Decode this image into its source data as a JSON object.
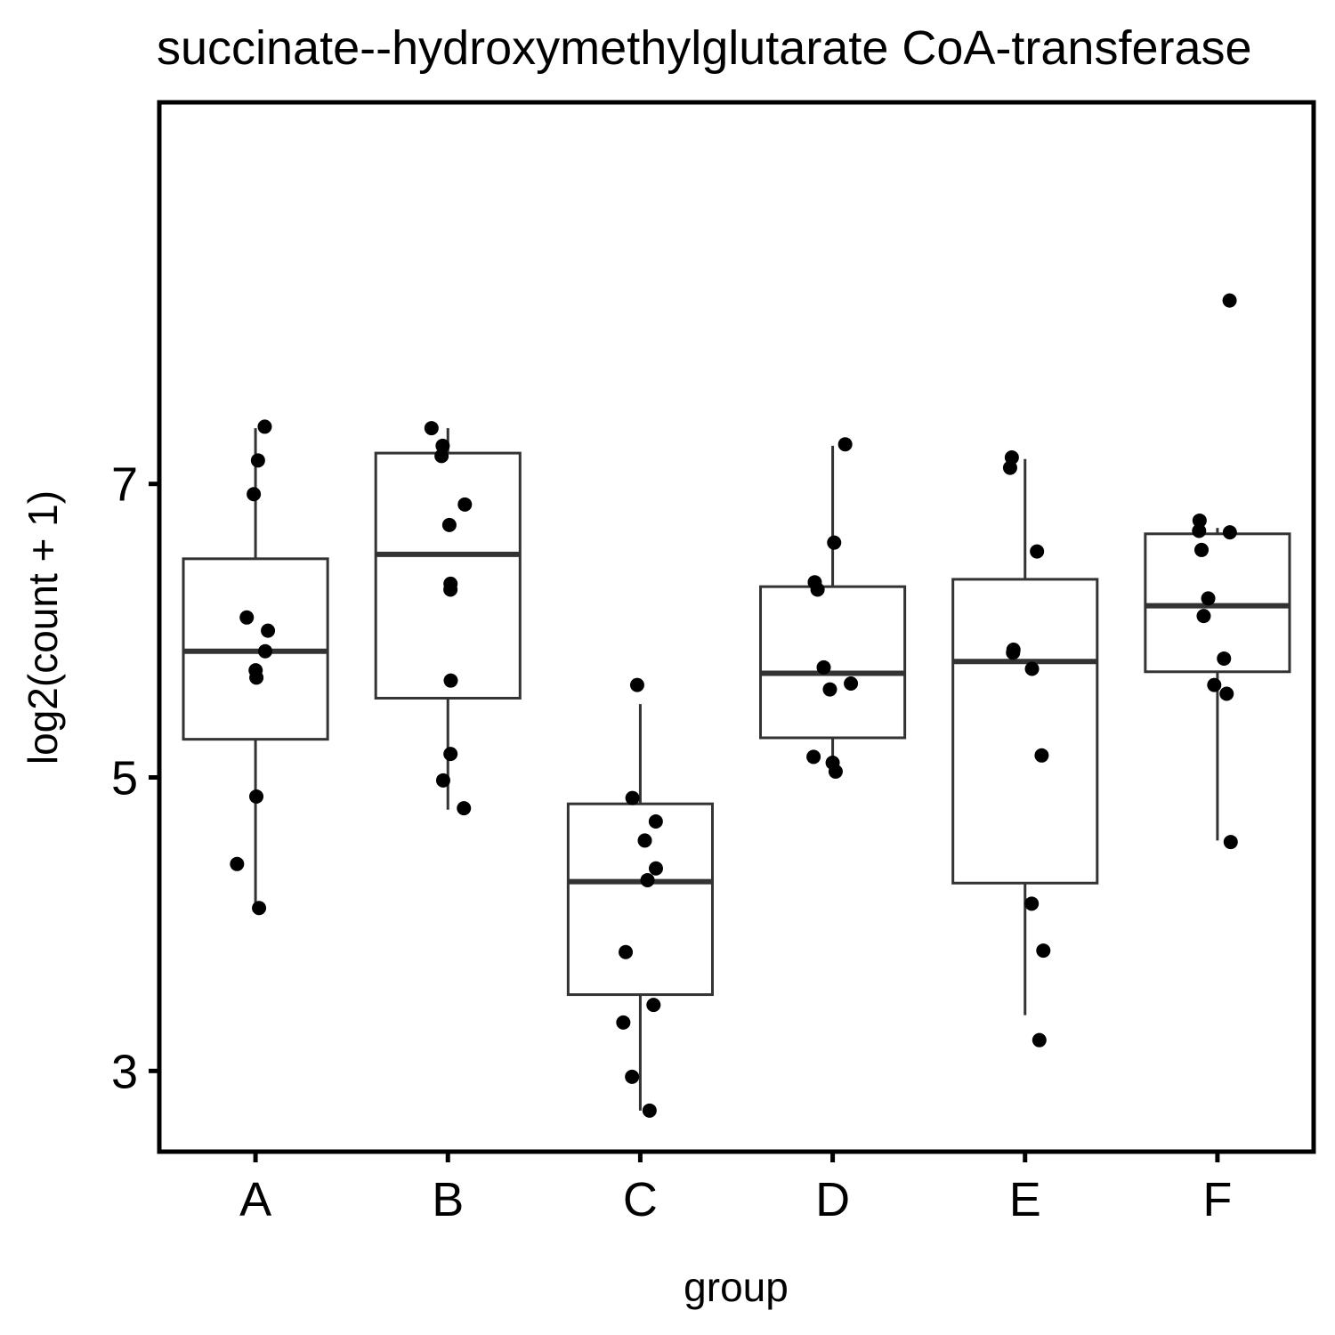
{
  "chart_data": {
    "type": "box",
    "title": "succinate--hydroxymethylglutarate CoA-transferase",
    "xlabel": "group",
    "ylabel": "log2(count + 1)",
    "ylim": [
      2.45,
      9.6
    ],
    "yticks": [
      3,
      5,
      7
    ],
    "grid": false,
    "legend": "none",
    "colors": {
      "box_stroke": "#333333",
      "points": "#000000",
      "frame": "#000000"
    },
    "categories": [
      "A",
      "B",
      "C",
      "D",
      "E",
      "F"
    ],
    "boxes": [
      {
        "group": "A",
        "whisker_low": 4.1,
        "q1": 5.26,
        "median": 5.86,
        "q3": 6.49,
        "whisker_high": 7.38
      },
      {
        "group": "B",
        "whisker_low": 4.78,
        "q1": 5.54,
        "median": 6.52,
        "q3": 7.21,
        "whisker_high": 7.38
      },
      {
        "group": "C",
        "whisker_low": 2.73,
        "q1": 3.52,
        "median": 4.29,
        "q3": 4.82,
        "whisker_high": 5.5
      },
      {
        "group": "D",
        "whisker_low": 5.04,
        "q1": 5.27,
        "median": 5.71,
        "q3": 6.3,
        "whisker_high": 7.26
      },
      {
        "group": "E",
        "whisker_low": 3.38,
        "q1": 4.28,
        "median": 5.79,
        "q3": 6.35,
        "whisker_high": 7.17
      },
      {
        "group": "F",
        "whisker_low": 4.57,
        "q1": 5.72,
        "median": 6.17,
        "q3": 6.66,
        "whisker_high": 6.7
      }
    ],
    "points": [
      {
        "group": "A",
        "values": [
          7.39,
          7.16,
          6.93,
          6.09,
          6.0,
          5.86,
          5.73,
          5.68,
          4.87,
          4.41,
          4.11
        ]
      },
      {
        "group": "B",
        "values": [
          7.38,
          7.26,
          7.19,
          6.86,
          6.72,
          6.32,
          6.28,
          5.66,
          5.16,
          4.98,
          4.79
        ]
      },
      {
        "group": "C",
        "values": [
          5.63,
          4.86,
          4.7,
          4.57,
          4.38,
          4.3,
          3.81,
          3.45,
          3.33,
          2.96,
          2.73
        ]
      },
      {
        "group": "D",
        "values": [
          7.27,
          6.6,
          6.33,
          6.28,
          5.75,
          5.64,
          5.6,
          5.14,
          5.1,
          5.04
        ]
      },
      {
        "group": "E",
        "values": [
          7.18,
          7.11,
          6.54,
          5.87,
          5.85,
          5.74,
          5.15,
          4.14,
          3.82,
          3.21
        ]
      },
      {
        "group": "F",
        "values": [
          8.25,
          6.75,
          6.68,
          6.67,
          6.55,
          6.22,
          6.1,
          5.81,
          5.63,
          5.57,
          4.56
        ]
      }
    ]
  }
}
